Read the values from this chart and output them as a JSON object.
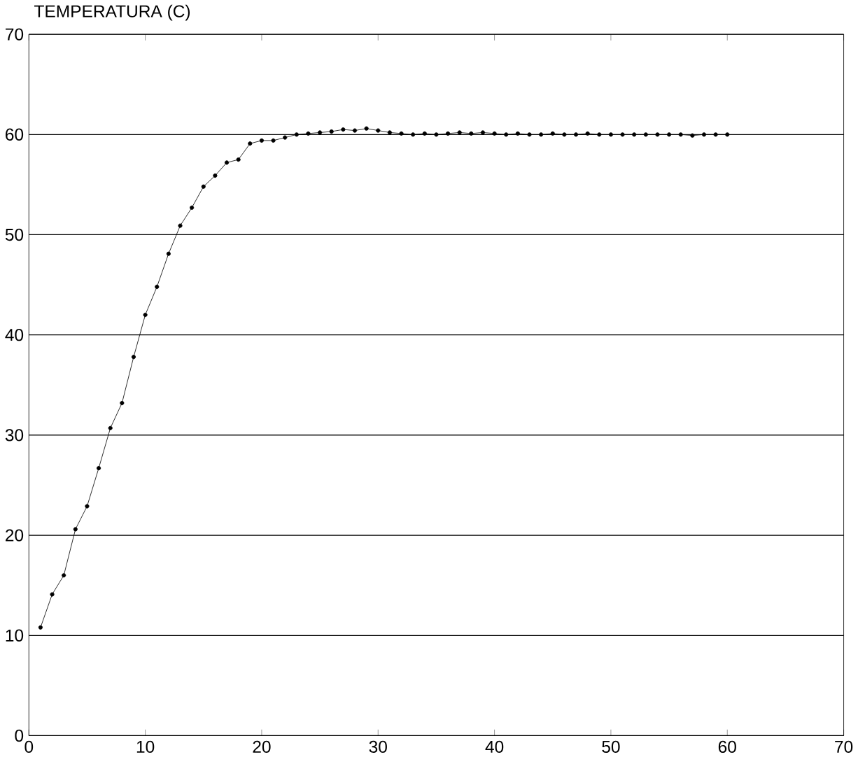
{
  "chart_data": {
    "type": "line",
    "ylabel": "TEMPERATURA (C)",
    "x": [
      1,
      2,
      3,
      4,
      5,
      6,
      7,
      8,
      9,
      10,
      11,
      12,
      13,
      14,
      15,
      16,
      17,
      18,
      19,
      20,
      21,
      22,
      23,
      24,
      25,
      26,
      27,
      28,
      29,
      30,
      31,
      32,
      33,
      34,
      35,
      36,
      37,
      38,
      39,
      40,
      41,
      42,
      43,
      44,
      45,
      46,
      47,
      48,
      49,
      50,
      51,
      52,
      53,
      54,
      55,
      56,
      57,
      58,
      59,
      60
    ],
    "values": [
      10.8,
      14.1,
      16.0,
      20.6,
      22.9,
      26.7,
      30.7,
      33.2,
      37.8,
      42.0,
      44.8,
      48.1,
      50.9,
      52.7,
      54.8,
      55.9,
      57.2,
      57.5,
      59.1,
      59.4,
      59.4,
      59.7,
      60.0,
      60.1,
      60.2,
      60.3,
      60.5,
      60.4,
      60.6,
      60.4,
      60.2,
      60.1,
      60.0,
      60.1,
      60.0,
      60.1,
      60.2,
      60.1,
      60.2,
      60.1,
      60.0,
      60.1,
      60.0,
      60.0,
      60.1,
      60.0,
      60.0,
      60.1,
      60.0,
      60.0,
      60.0,
      60.0,
      60.0,
      60.0,
      60.0,
      60.0,
      59.9,
      60.0,
      60.0,
      60.0
    ],
    "color": "#000000",
    "marker": "circle",
    "line_style": "solid",
    "xlim": [
      0,
      70
    ],
    "xticks": [
      0,
      10,
      20,
      30,
      40,
      50,
      60,
      70
    ],
    "ylim": [
      0,
      70
    ],
    "yticks": [
      0,
      10,
      20,
      30,
      40,
      50,
      60,
      70
    ],
    "grid": "y"
  }
}
